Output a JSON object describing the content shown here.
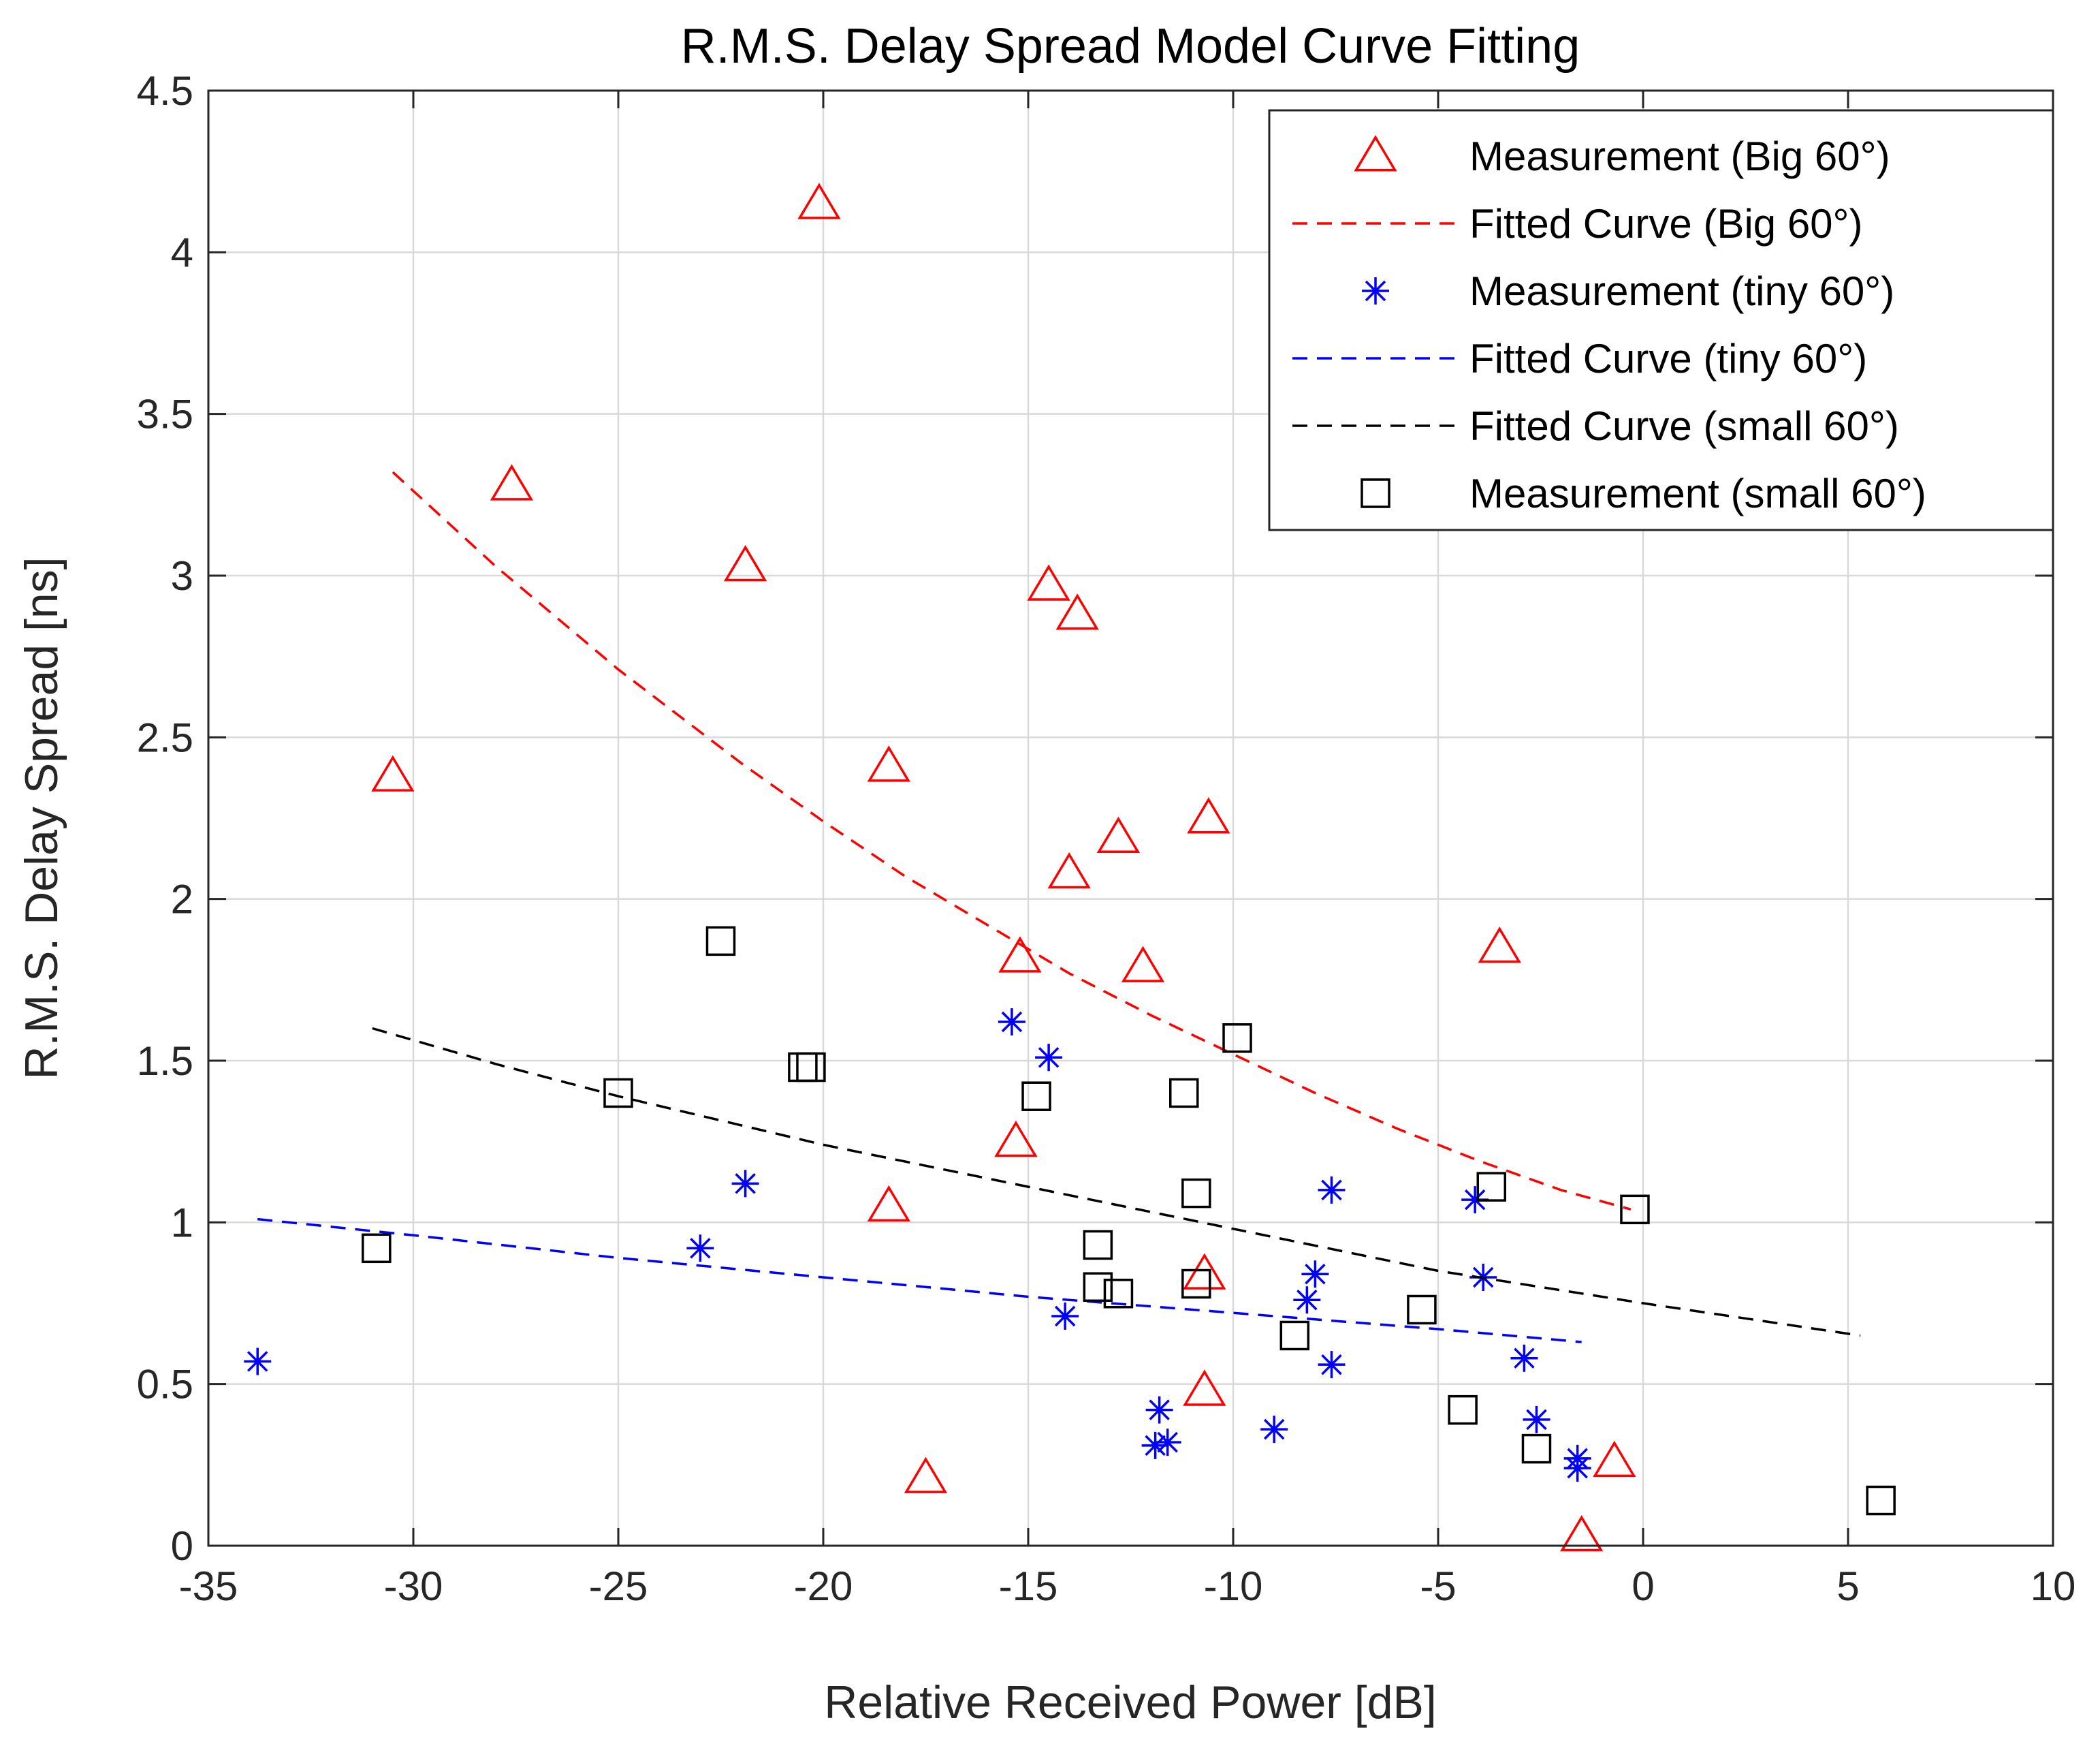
{
  "chart_data": {
    "type": "scatter",
    "title": "R.M.S. Delay Spread Model Curve Fitting",
    "xlabel": "Relative Received Power [dB]",
    "ylabel": "R.M.S. Delay Spread [ns]",
    "xlim": [
      -35,
      10
    ],
    "ylim": [
      0,
      4.5
    ],
    "xticks": [
      -35,
      -30,
      -25,
      -20,
      -15,
      -10,
      -5,
      0,
      5,
      10
    ],
    "yticks": [
      0,
      0.5,
      1,
      1.5,
      2,
      2.5,
      3,
      3.5,
      4,
      4.5
    ],
    "grid": true,
    "legend_position": "top-right",
    "colors": {
      "red": "#ff0000",
      "blue": "#0000ff",
      "black": "#000000"
    },
    "series": [
      {
        "name": "Measurement (Big 60°)",
        "kind": "markers",
        "marker": "triangle",
        "color": "#ff0000",
        "points": [
          [
            -30.5,
            2.38
          ],
          [
            -27.6,
            3.28
          ],
          [
            -21.9,
            3.03
          ],
          [
            -20.1,
            4.15
          ],
          [
            -18.4,
            2.41
          ],
          [
            -18.4,
            1.05
          ],
          [
            -17.5,
            0.21
          ],
          [
            -15.2,
            1.82
          ],
          [
            -15.3,
            1.25
          ],
          [
            -14.5,
            2.97
          ],
          [
            -14.0,
            2.08
          ],
          [
            -13.8,
            2.88
          ],
          [
            -12.8,
            2.19
          ],
          [
            -12.2,
            1.79
          ],
          [
            -10.6,
            2.25
          ],
          [
            -10.7,
            0.84
          ],
          [
            -10.7,
            0.48
          ],
          [
            -3.5,
            1.85
          ],
          [
            -1.5,
            0.03
          ],
          [
            -0.7,
            0.26
          ]
        ]
      },
      {
        "name": "Fitted Curve (Big 60°)",
        "kind": "line",
        "dash": "dashed",
        "color": "#ff0000",
        "points": [
          [
            -30.5,
            3.32
          ],
          [
            -28,
            3.03
          ],
          [
            -25,
            2.71
          ],
          [
            -22,
            2.42
          ],
          [
            -20,
            2.24
          ],
          [
            -18,
            2.07
          ],
          [
            -16,
            1.92
          ],
          [
            -14,
            1.77
          ],
          [
            -12,
            1.64
          ],
          [
            -10,
            1.52
          ],
          [
            -8,
            1.4
          ],
          [
            -6,
            1.29
          ],
          [
            -4,
            1.19
          ],
          [
            -2,
            1.1
          ],
          [
            -0.3,
            1.04
          ]
        ]
      },
      {
        "name": "Measurement (tiny 60°)",
        "kind": "markers",
        "marker": "asterisk",
        "color": "#0000ff",
        "points": [
          [
            -33.8,
            0.57
          ],
          [
            -23.0,
            0.92
          ],
          [
            -21.9,
            1.12
          ],
          [
            -15.4,
            1.62
          ],
          [
            -14.5,
            1.51
          ],
          [
            -14.1,
            0.71
          ],
          [
            -11.8,
            0.42
          ],
          [
            -11.9,
            0.31
          ],
          [
            -11.6,
            0.32
          ],
          [
            -9.0,
            0.36
          ],
          [
            -8.2,
            0.76
          ],
          [
            -8.0,
            0.84
          ],
          [
            -7.6,
            1.1
          ],
          [
            -7.6,
            0.56
          ],
          [
            -4.1,
            1.07
          ],
          [
            -3.9,
            0.83
          ],
          [
            -2.9,
            0.58
          ],
          [
            -2.6,
            0.39
          ],
          [
            -1.6,
            0.27
          ],
          [
            -1.6,
            0.24
          ]
        ]
      },
      {
        "name": "Fitted Curve (tiny 60°)",
        "kind": "line",
        "dash": "dashed",
        "color": "#0000ff",
        "points": [
          [
            -33.8,
            1.01
          ],
          [
            -30,
            0.96
          ],
          [
            -25,
            0.89
          ],
          [
            -20,
            0.83
          ],
          [
            -15,
            0.77
          ],
          [
            -10,
            0.72
          ],
          [
            -5,
            0.67
          ],
          [
            -1.5,
            0.63
          ]
        ]
      },
      {
        "name": "Fitted Curve (small 60°)",
        "kind": "line",
        "dash": "dashed",
        "color": "#000000",
        "points": [
          [
            -31,
            1.6
          ],
          [
            -28,
            1.49
          ],
          [
            -25,
            1.39
          ],
          [
            -22,
            1.3
          ],
          [
            -20,
            1.24
          ],
          [
            -15,
            1.11
          ],
          [
            -10,
            0.98
          ],
          [
            -5,
            0.85
          ],
          [
            0,
            0.75
          ],
          [
            5.3,
            0.65
          ]
        ]
      },
      {
        "name": "Measurement (small 60°)",
        "kind": "markers",
        "marker": "square",
        "color": "#000000",
        "points": [
          [
            -30.9,
            0.92
          ],
          [
            -25.0,
            1.4
          ],
          [
            -22.5,
            1.87
          ],
          [
            -20.5,
            1.48
          ],
          [
            -20.3,
            1.48
          ],
          [
            -14.8,
            1.39
          ],
          [
            -13.3,
            0.93
          ],
          [
            -13.3,
            0.8
          ],
          [
            -12.8,
            0.78
          ],
          [
            -11.2,
            1.4
          ],
          [
            -10.9,
            1.09
          ],
          [
            -10.9,
            0.81
          ],
          [
            -9.9,
            1.57
          ],
          [
            -8.5,
            0.65
          ],
          [
            -5.4,
            0.73
          ],
          [
            -4.4,
            0.42
          ],
          [
            -3.7,
            1.11
          ],
          [
            -2.6,
            0.3
          ],
          [
            -0.2,
            1.04
          ],
          [
            5.8,
            0.14
          ]
        ]
      }
    ]
  }
}
